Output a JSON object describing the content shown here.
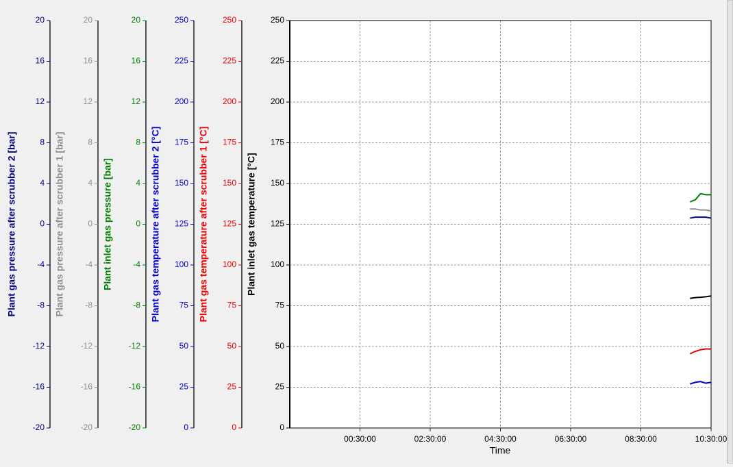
{
  "chart_data": {
    "type": "line",
    "x_label": "Time",
    "x": [
      9.9,
      10.05,
      10.2,
      10.35,
      10.5
    ],
    "xlim": [
      -1.5,
      10.5
    ],
    "xticks": [
      {
        "value": 0.5,
        "label": "00:30:00"
      },
      {
        "value": 2.5,
        "label": "02:30:00"
      },
      {
        "value": 4.5,
        "label": "04:30:00"
      },
      {
        "value": 6.5,
        "label": "06:30:00"
      },
      {
        "value": 8.5,
        "label": "08:30:00"
      },
      {
        "value": 10.5,
        "label": "10:30:00"
      }
    ],
    "grid": true,
    "yaxes": [
      {
        "label": "Plant gas pressure after scrubber 2 [bar]",
        "color": "#000080",
        "lim": [
          -20,
          20
        ],
        "ticks": [
          -20,
          -16,
          -12,
          -8,
          -4,
          0,
          4,
          8,
          12,
          16,
          20
        ]
      },
      {
        "label": "Plant gas pressure after scrubber 1 [bar]",
        "color": "#909090",
        "lim": [
          -20,
          20
        ],
        "ticks": [
          -20,
          -16,
          -12,
          -8,
          -4,
          0,
          4,
          8,
          12,
          16,
          20
        ]
      },
      {
        "label": "Plant inlet gas pressure [bar]",
        "color": "#008000",
        "lim": [
          -20,
          20
        ],
        "ticks": [
          -20,
          -16,
          -12,
          -8,
          -4,
          0,
          4,
          8,
          12,
          16,
          20
        ]
      },
      {
        "label": "Plant gas temperature after scrubber 2 [°C]",
        "color": "#0000cc",
        "lim": [
          0,
          250
        ],
        "ticks": [
          0,
          25,
          50,
          75,
          100,
          125,
          150,
          175,
          200,
          225,
          250
        ]
      },
      {
        "label": "Plant gas temperature after scrubber 1 [°C]",
        "color": "#ee0000",
        "lim": [
          0,
          250
        ],
        "ticks": [
          0,
          25,
          50,
          75,
          100,
          125,
          150,
          175,
          200,
          225,
          250
        ]
      },
      {
        "label": "Plant inlet gas temperature [°C]",
        "color": "#000000",
        "lim": [
          0,
          250
        ],
        "ticks": [
          0,
          25,
          50,
          75,
          100,
          125,
          150,
          175,
          200,
          225,
          250
        ]
      }
    ],
    "series": [
      {
        "color": "#000080",
        "axis": 0,
        "values": [
          0.6,
          0.7,
          0.7,
          0.7,
          0.6
        ]
      },
      {
        "color": "#909090",
        "axis": 1,
        "values": [
          1.5,
          1.5,
          1.4,
          1.4,
          1.3
        ]
      },
      {
        "color": "#008000",
        "axis": 2,
        "values": [
          2.2,
          2.4,
          3.0,
          2.9,
          2.9
        ]
      },
      {
        "color": "#0000cc",
        "axis": 3,
        "values": [
          27,
          28,
          28.5,
          27.5,
          28
        ]
      },
      {
        "color": "#ee0000",
        "axis": 4,
        "values": [
          45.5,
          47,
          48,
          48.5,
          48.5
        ]
      },
      {
        "color": "#000000",
        "axis": 5,
        "values": [
          79.5,
          80,
          80.2,
          80.5,
          81
        ]
      }
    ]
  }
}
